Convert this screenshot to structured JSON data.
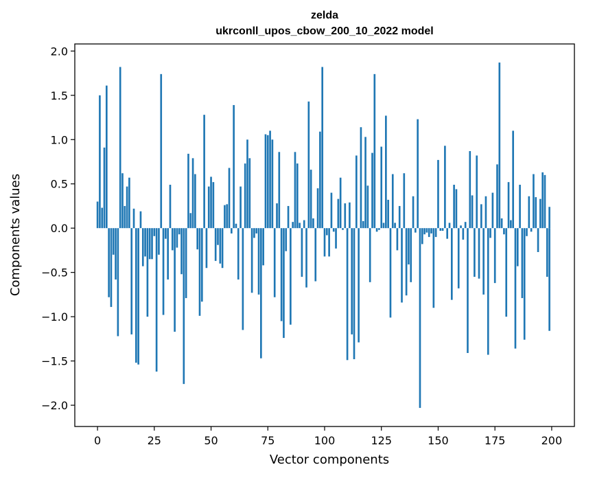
{
  "chart_data": {
    "type": "bar",
    "title": "zelda",
    "subtitle": "ukrconll_upos_cbow_200_10_2022 model",
    "xlabel": "Vector components",
    "ylabel": "Components values",
    "xlim": [
      -10,
      210
    ],
    "ylim": [
      -2.24,
      2.08
    ],
    "xticks": [
      0,
      25,
      50,
      75,
      100,
      125,
      150,
      175,
      200
    ],
    "yticks": [
      -2.0,
      -1.5,
      -1.0,
      -0.5,
      0.0,
      0.5,
      1.0,
      1.5,
      2.0
    ],
    "ytick_labels": [
      "−2.0",
      "−1.5",
      "−1.0",
      "−0.5",
      "0.0",
      "0.5",
      "1.0",
      "1.5",
      "2.0"
    ],
    "grid": false,
    "color": "#1f77b4",
    "series": [
      {
        "x_start": 0,
        "values": [
          0.3,
          1.5,
          0.23,
          0.91,
          1.61,
          -0.78,
          -0.89,
          -0.3,
          -0.58,
          -1.22,
          1.82,
          0.62,
          0.25,
          0.47,
          0.57,
          -1.2,
          0.22,
          -1.52,
          -1.54,
          0.19,
          -0.43,
          -0.32,
          -1.0,
          -0.35,
          -0.35,
          -0.09,
          -1.62,
          -0.3,
          1.74,
          -0.98,
          -0.12,
          -0.58,
          0.49,
          -0.25,
          -1.17,
          -0.22,
          -0.07,
          -0.52,
          -1.76,
          -0.79,
          0.84,
          0.17,
          0.79,
          0.61,
          -0.24,
          -0.99,
          -0.83,
          1.28,
          -0.45,
          0.47,
          0.58,
          0.52,
          -0.37,
          -0.19,
          -0.4,
          -0.45,
          0.26,
          0.27,
          0.68,
          -0.06,
          1.39,
          0.05,
          -0.58,
          0.47,
          -1.15,
          0.73,
          1.0,
          0.79,
          -0.73,
          -0.11,
          -0.06,
          -0.75,
          -1.47,
          -0.42,
          1.06,
          1.05,
          1.1,
          1.0,
          -0.78,
          0.28,
          0.86,
          -1.05,
          -1.24,
          -0.26,
          0.25,
          -1.09,
          0.07,
          0.86,
          0.73,
          0.06,
          -0.55,
          0.09,
          -0.67,
          1.43,
          0.66,
          0.11,
          -0.6,
          0.45,
          1.09,
          1.82,
          -0.32,
          -0.08,
          -0.32,
          0.4,
          -0.04,
          -0.23,
          0.33,
          0.57,
          -0.02,
          0.28,
          -1.49,
          0.29,
          -1.2,
          -1.48,
          0.82,
          -1.29,
          1.14,
          0.08,
          1.03,
          0.48,
          -0.61,
          0.85,
          1.74,
          -0.04,
          -0.02,
          0.92,
          0.06,
          1.27,
          0.32,
          -1.01,
          0.61,
          0.06,
          -0.25,
          0.25,
          -0.84,
          0.62,
          -0.76,
          -0.41,
          -0.61,
          0.36,
          -0.05,
          1.23,
          -2.03,
          -0.18,
          -0.07,
          -0.05,
          -0.1,
          -0.06,
          -0.9,
          -0.1,
          0.77,
          -0.03,
          -0.03,
          0.93,
          -0.12,
          0.06,
          -0.81,
          0.49,
          0.44,
          -0.68,
          0.03,
          -0.13,
          0.07,
          -1.41,
          0.87,
          0.37,
          -0.55,
          0.82,
          -0.57,
          0.27,
          -0.75,
          0.36,
          -1.43,
          -0.11,
          0.4,
          -0.62,
          0.72,
          1.87,
          0.11,
          -0.07,
          -1.0,
          0.52,
          0.09,
          1.1,
          -1.36,
          -0.43,
          0.49,
          -0.79,
          -1.26,
          -0.09,
          0.36,
          -0.04,
          0.61,
          0.35,
          -0.27,
          0.33,
          0.63,
          0.6,
          -0.55,
          0.24
        ]
      },
      {
        "x_start": 199,
        "values": [
          -1.16
        ]
      }
    ]
  }
}
